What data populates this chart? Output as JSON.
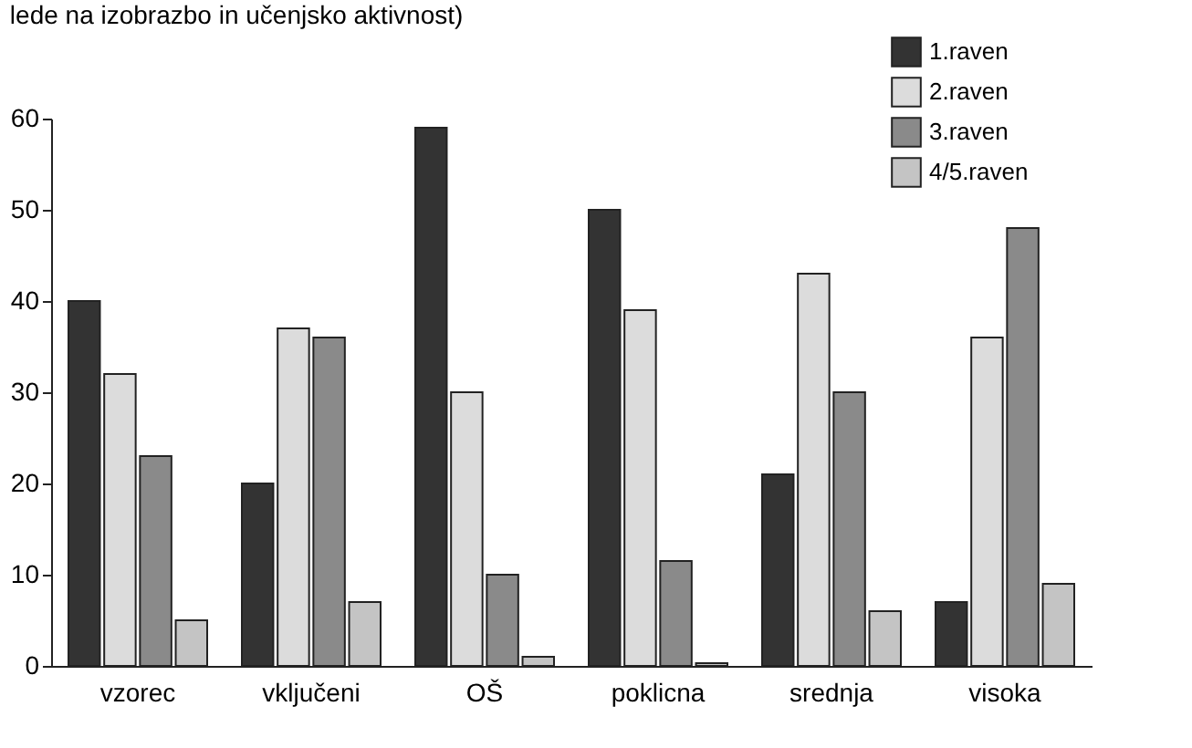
{
  "chart_data": {
    "type": "bar",
    "title": "lede na izobrazbo in učenjsko aktivnost)",
    "categories": [
      "vzorec",
      "vključeni",
      "OŠ",
      "poklicna",
      "srednja",
      "visoka"
    ],
    "series": [
      {
        "name": "1.raven",
        "color": "#333333",
        "values": [
          40,
          20,
          59,
          50,
          21,
          7
        ]
      },
      {
        "name": "2.raven",
        "color": "#dcdcdc",
        "values": [
          32,
          37,
          30,
          39,
          43,
          36
        ]
      },
      {
        "name": "3.raven",
        "color": "#8a8a8a",
        "values": [
          23,
          36,
          10,
          11.5,
          30,
          48
        ]
      },
      {
        "name": "4/5.raven",
        "color": "#c4c4c4",
        "values": [
          5,
          7,
          1,
          0.3,
          6,
          9
        ]
      }
    ],
    "ylim": [
      0,
      60
    ],
    "yticks": [
      0,
      10,
      20,
      30,
      40,
      50,
      60
    ],
    "grid": false,
    "legend": "top right"
  }
}
